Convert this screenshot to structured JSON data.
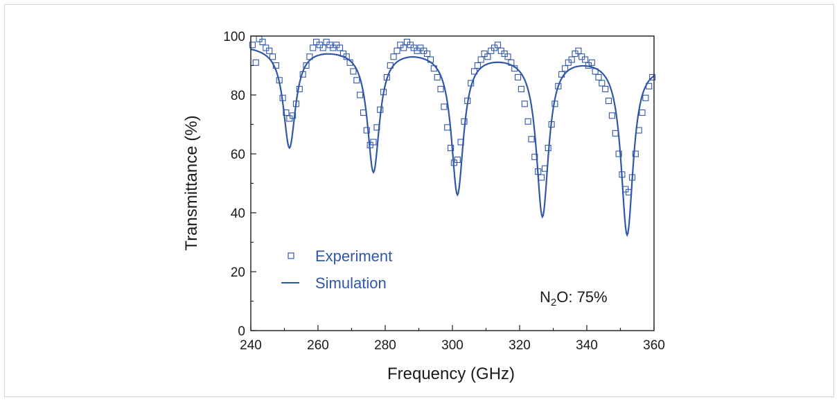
{
  "chart_data": {
    "type": "scatter",
    "xlabel": "Frequency (GHz)",
    "ylabel": "Transmittance (%)",
    "xlim": [
      240,
      360
    ],
    "ylim": [
      0,
      100
    ],
    "x_ticks": [
      240,
      260,
      280,
      300,
      320,
      340,
      360
    ],
    "y_ticks": [
      0,
      20,
      40,
      60,
      80,
      100
    ],
    "grid": false,
    "legend": {
      "position": "bottom-left"
    },
    "annotation": {
      "prefix": "N",
      "subscript": "2",
      "suffix": "O: 75%",
      "position": "bottom-right"
    },
    "colors": {
      "series": "#2f56a8",
      "axis": "#1a1a1a"
    },
    "series": [
      {
        "name": "Experiment",
        "kind": "scatter",
        "marker": "open-square",
        "points": [
          [
            240.5,
            97
          ],
          [
            241.5,
            91
          ],
          [
            242.5,
            99
          ],
          [
            243.5,
            98
          ],
          [
            244.5,
            96
          ],
          [
            245.5,
            95
          ],
          [
            246.5,
            93
          ],
          [
            247.5,
            90
          ],
          [
            248.5,
            85
          ],
          [
            249.5,
            79
          ],
          [
            250.5,
            74
          ],
          [
            251.5,
            72
          ],
          [
            252.5,
            73
          ],
          [
            253.5,
            77
          ],
          [
            254.5,
            82
          ],
          [
            255.5,
            87
          ],
          [
            256.5,
            90
          ],
          [
            257.5,
            93
          ],
          [
            258.5,
            96
          ],
          [
            259.5,
            98
          ],
          [
            260.5,
            97
          ],
          [
            261.5,
            96
          ],
          [
            262.5,
            98
          ],
          [
            263.5,
            97
          ],
          [
            264.5,
            96
          ],
          [
            265.5,
            97
          ],
          [
            266.5,
            96
          ],
          [
            267.5,
            94
          ],
          [
            268.5,
            93
          ],
          [
            269.5,
            91
          ],
          [
            270.5,
            88
          ],
          [
            271.5,
            85
          ],
          [
            272.5,
            80
          ],
          [
            273.5,
            74
          ],
          [
            274.5,
            68
          ],
          [
            275.5,
            63
          ],
          [
            276.5,
            64
          ],
          [
            277.5,
            69
          ],
          [
            278.5,
            75
          ],
          [
            279.5,
            81
          ],
          [
            280.5,
            86
          ],
          [
            281.5,
            90
          ],
          [
            282.5,
            93
          ],
          [
            283.5,
            95
          ],
          [
            284.5,
            97
          ],
          [
            285.5,
            96
          ],
          [
            286.5,
            98
          ],
          [
            287.5,
            97
          ],
          [
            288.5,
            96
          ],
          [
            289.5,
            95
          ],
          [
            290.5,
            96
          ],
          [
            291.5,
            95
          ],
          [
            292.5,
            94
          ],
          [
            293.5,
            92
          ],
          [
            294.5,
            89
          ],
          [
            295.5,
            86
          ],
          [
            296.5,
            82
          ],
          [
            297.5,
            76
          ],
          [
            298.5,
            69
          ],
          [
            299.5,
            62
          ],
          [
            300.5,
            57
          ],
          [
            301.5,
            58
          ],
          [
            302.5,
            64
          ],
          [
            303.5,
            71
          ],
          [
            304.5,
            78
          ],
          [
            305.5,
            84
          ],
          [
            306.5,
            88
          ],
          [
            307.5,
            90
          ],
          [
            308.5,
            92
          ],
          [
            309.5,
            94
          ],
          [
            310.5,
            93
          ],
          [
            311.5,
            95
          ],
          [
            312.5,
            96
          ],
          [
            313.5,
            97
          ],
          [
            314.5,
            95
          ],
          [
            315.5,
            94
          ],
          [
            316.5,
            93
          ],
          [
            317.5,
            91
          ],
          [
            318.5,
            89
          ],
          [
            319.5,
            86
          ],
          [
            320.5,
            82
          ],
          [
            321.5,
            77
          ],
          [
            322.5,
            71
          ],
          [
            323.5,
            65
          ],
          [
            324.5,
            59
          ],
          [
            325.5,
            54
          ],
          [
            326.5,
            52
          ],
          [
            327.5,
            55
          ],
          [
            328.5,
            62
          ],
          [
            329.5,
            70
          ],
          [
            330.5,
            77
          ],
          [
            331.5,
            83
          ],
          [
            332.5,
            87
          ],
          [
            333.5,
            89
          ],
          [
            334.5,
            91
          ],
          [
            335.5,
            92
          ],
          [
            336.5,
            94
          ],
          [
            337.5,
            95
          ],
          [
            338.5,
            93
          ],
          [
            339.5,
            92
          ],
          [
            340.5,
            90
          ],
          [
            341.5,
            91
          ],
          [
            342.5,
            88
          ],
          [
            343.5,
            86
          ],
          [
            344.5,
            84
          ],
          [
            345.5,
            82
          ],
          [
            346.5,
            78
          ],
          [
            347.5,
            73
          ],
          [
            348.5,
            67
          ],
          [
            349.5,
            60
          ],
          [
            350.5,
            53
          ],
          [
            351.5,
            48
          ],
          [
            352.5,
            47
          ],
          [
            353.5,
            52
          ],
          [
            354.5,
            60
          ],
          [
            355.5,
            68
          ],
          [
            356.5,
            74
          ],
          [
            357.5,
            79
          ],
          [
            358.5,
            83
          ],
          [
            359.5,
            86
          ]
        ]
      },
      {
        "name": "Simulation",
        "kind": "line",
        "model": "lorentzian-dips",
        "baseline": [
          [
            240,
            97
          ],
          [
            250,
            96.5
          ],
          [
            262,
            96.5
          ],
          [
            276,
            96
          ],
          [
            288,
            96
          ],
          [
            301,
            95
          ],
          [
            313,
            94.5
          ],
          [
            326,
            94
          ],
          [
            339,
            93.5
          ],
          [
            352,
            93
          ],
          [
            360,
            91
          ]
        ],
        "dips": [
          {
            "center": 251.5,
            "min": 62.5
          },
          {
            "center": 276.5,
            "min": 54.5
          },
          {
            "center": 301.5,
            "min": 47
          },
          {
            "center": 326.8,
            "min": 39.5
          },
          {
            "center": 352,
            "min": 33
          }
        ],
        "hwhm_ghz": 2.2
      }
    ]
  }
}
